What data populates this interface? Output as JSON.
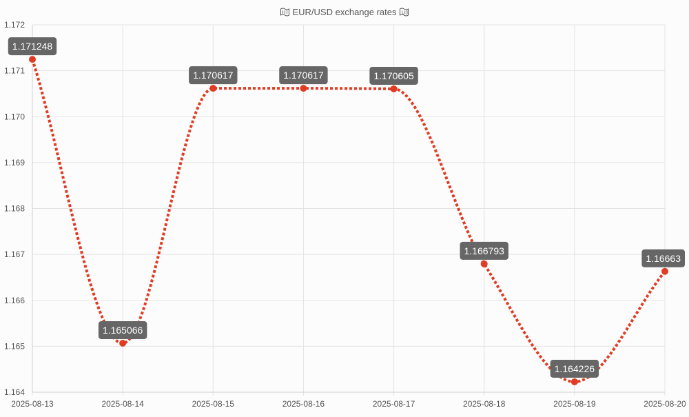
{
  "chart_data": {
    "type": "line",
    "title": "EUR/USD exchange rates",
    "title_icons": [
      "eu-flag-icon",
      "us-flag-icon"
    ],
    "xlabel": "",
    "ylabel": "",
    "categories": [
      "2025-08-13",
      "2025-08-14",
      "2025-08-15",
      "2025-08-16",
      "2025-08-17",
      "2025-08-18",
      "2025-08-19",
      "2025-08-20"
    ],
    "series": [
      {
        "values": [
          1.171248,
          1.165066,
          1.170617,
          1.170617,
          1.170605,
          1.166793,
          1.164226,
          1.16663
        ],
        "labels": [
          "1.171248",
          "1.165066",
          "1.170617",
          "1.170617",
          "1.170605",
          "1.166793",
          "1.164226",
          "1.16663"
        ],
        "color": "#e03c24"
      }
    ],
    "ylim": [
      1.164,
      1.172
    ],
    "yticks": [
      "1.164",
      "1.165",
      "1.166",
      "1.167",
      "1.168",
      "1.169",
      "1.170",
      "1.171",
      "1.172"
    ],
    "grid": true,
    "legend": "none",
    "line_style": "dotted-smooth",
    "label_bg_color": "#666666",
    "grid_color": "#e3e3e3"
  }
}
